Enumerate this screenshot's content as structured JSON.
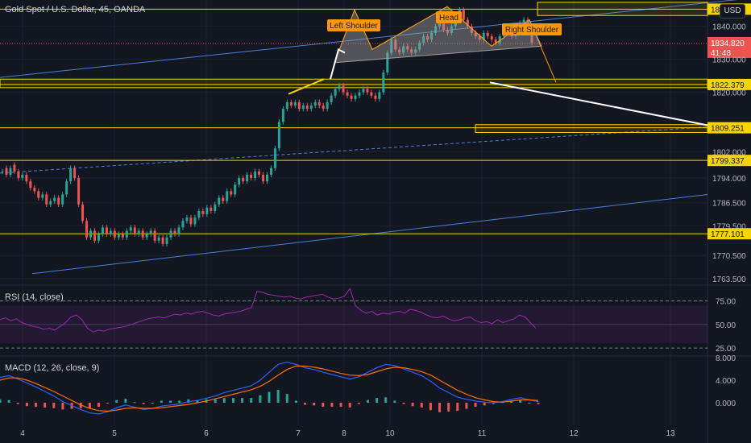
{
  "header": {
    "symbol": "Gold Spot / U.S. Dollar, 45, OANDA",
    "currency_button": "USD"
  },
  "colors": {
    "background": "#131722",
    "grid": "#1e222d",
    "up": "#26a69a",
    "down": "#ef5350",
    "level_line": "#f5d400",
    "channel": "#4a7fd6",
    "pattern_fill": "#9e9e9e",
    "annotation_bg": "#ff9800",
    "rsi": "#9c27b0",
    "macd": "#2962ff",
    "signal": "#ff6d00",
    "hist_up": "#26a69a",
    "hist_down": "#ef5350"
  },
  "annotations": {
    "left_shoulder": "Left Shoulder",
    "head": "Head",
    "right_shoulder": "Right Shoulder"
  },
  "current_price": {
    "price": "1834.820",
    "countdown": "41:48"
  },
  "level_tags": [
    {
      "label": "1845.225",
      "value": 1845.225
    },
    {
      "label": "1822.379",
      "value": 1822.379
    },
    {
      "label": "1809.251",
      "value": 1809.251
    },
    {
      "label": "1799.337",
      "value": 1799.337
    },
    {
      "label": "1777.101",
      "value": 1777.101
    }
  ],
  "chart_data": {
    "type": "candlestick",
    "title": "Gold Spot / U.S. Dollar, 45, OANDA",
    "price_axis": {
      "ticks": [
        "1840.000",
        "1830.000",
        "1820.000",
        "1802.000",
        "1794.000",
        "1786.500",
        "1779.500",
        "1770.500",
        "1763.500"
      ],
      "range": [
        1762,
        1848
      ]
    },
    "x_axis": {
      "ticks": [
        "4",
        "5",
        "6",
        "7",
        "8",
        "10",
        "11",
        "12",
        "13"
      ]
    },
    "horizontal_levels": [
      1845.225,
      1822.379,
      1809.251,
      1799.337,
      1777.101
    ],
    "price_path": [
      [
        1796,
        1796
      ],
      [
        1797,
        1795
      ],
      [
        1795,
        1797
      ],
      [
        1798,
        1796
      ],
      [
        1796,
        1794
      ],
      [
        1794,
        1795
      ],
      [
        1795,
        1793
      ],
      [
        1793,
        1791
      ],
      [
        1791,
        1790
      ],
      [
        1790,
        1788
      ],
      [
        1788,
        1789
      ],
      [
        1789,
        1786
      ],
      [
        1786,
        1787
      ],
      [
        1787,
        1788
      ],
      [
        1788,
        1786
      ],
      [
        1786,
        1789
      ],
      [
        1789,
        1793
      ],
      [
        1793,
        1797
      ],
      [
        1797,
        1794
      ],
      [
        1794,
        1786
      ],
      [
        1786,
        1781
      ],
      [
        1781,
        1776
      ],
      [
        1776,
        1778
      ],
      [
        1778,
        1775
      ],
      [
        1775,
        1777
      ],
      [
        1777,
        1779
      ],
      [
        1779,
        1777
      ],
      [
        1777,
        1778
      ],
      [
        1778,
        1776
      ],
      [
        1776,
        1777
      ],
      [
        1777,
        1776
      ],
      [
        1776,
        1778
      ],
      [
        1778,
        1779
      ],
      [
        1779,
        1777
      ],
      [
        1777,
        1778
      ],
      [
        1778,
        1776
      ],
      [
        1776,
        1777
      ],
      [
        1777,
        1778
      ],
      [
        1778,
        1775
      ],
      [
        1775,
        1776
      ],
      [
        1776,
        1774
      ],
      [
        1774,
        1776
      ],
      [
        1776,
        1778
      ],
      [
        1778,
        1777
      ],
      [
        1777,
        1779
      ],
      [
        1779,
        1781
      ],
      [
        1781,
        1782
      ],
      [
        1782,
        1780
      ],
      [
        1780,
        1782
      ],
      [
        1782,
        1784
      ],
      [
        1784,
        1783
      ],
      [
        1783,
        1785
      ],
      [
        1785,
        1784
      ],
      [
        1784,
        1786
      ],
      [
        1786,
        1788
      ],
      [
        1788,
        1787
      ],
      [
        1787,
        1790
      ],
      [
        1790,
        1789
      ],
      [
        1789,
        1792
      ],
      [
        1792,
        1794
      ],
      [
        1794,
        1793
      ],
      [
        1793,
        1795
      ],
      [
        1795,
        1794
      ],
      [
        1794,
        1796
      ],
      [
        1796,
        1795
      ],
      [
        1795,
        1793
      ],
      [
        1793,
        1795
      ],
      [
        1795,
        1797
      ],
      [
        1797,
        1803
      ],
      [
        1803,
        1811
      ],
      [
        1811,
        1815
      ],
      [
        1815,
        1817
      ],
      [
        1817,
        1816
      ],
      [
        1816,
        1817
      ],
      [
        1817,
        1815
      ],
      [
        1815,
        1816
      ],
      [
        1816,
        1815
      ],
      [
        1815,
        1816
      ],
      [
        1816,
        1817
      ],
      [
        1817,
        1816
      ],
      [
        1816,
        1815
      ],
      [
        1815,
        1817
      ],
      [
        1817,
        1819
      ],
      [
        1819,
        1821
      ],
      [
        1821,
        1822
      ],
      [
        1822,
        1820
      ],
      [
        1820,
        1819
      ],
      [
        1819,
        1818
      ],
      [
        1818,
        1819
      ],
      [
        1819,
        1820
      ],
      [
        1820,
        1821
      ],
      [
        1821,
        1820
      ],
      [
        1820,
        1819
      ],
      [
        1819,
        1818
      ],
      [
        1818,
        1820
      ],
      [
        1820,
        1826
      ],
      [
        1826,
        1832
      ],
      [
        1832,
        1836
      ],
      [
        1836,
        1833
      ],
      [
        1833,
        1832
      ],
      [
        1832,
        1834
      ],
      [
        1834,
        1833
      ],
      [
        1833,
        1832
      ],
      [
        1832,
        1833
      ],
      [
        1833,
        1835
      ],
      [
        1835,
        1837
      ],
      [
        1837,
        1836
      ],
      [
        1836,
        1838
      ],
      [
        1838,
        1840
      ],
      [
        1840,
        1841
      ],
      [
        1841,
        1839
      ],
      [
        1839,
        1838
      ],
      [
        1838,
        1840
      ],
      [
        1840,
        1843
      ],
      [
        1843,
        1845
      ],
      [
        1845,
        1842
      ],
      [
        1842,
        1840
      ],
      [
        1840,
        1838
      ],
      [
        1838,
        1837
      ],
      [
        1837,
        1836
      ],
      [
        1836,
        1838
      ],
      [
        1838,
        1837
      ],
      [
        1837,
        1836
      ],
      [
        1836,
        1835
      ],
      [
        1835,
        1837
      ],
      [
        1837,
        1839
      ],
      [
        1839,
        1838
      ],
      [
        1838,
        1837
      ],
      [
        1837,
        1839
      ],
      [
        1839,
        1841
      ],
      [
        1841,
        1842
      ],
      [
        1842,
        1838
      ],
      [
        1838,
        1835
      ]
    ],
    "rsi": {
      "title": "RSI (14, close)",
      "ticks": [
        "75.00",
        "50.00",
        "25.00"
      ],
      "band": [
        30,
        70
      ],
      "range": [
        20,
        90
      ],
      "values": [
        55,
        57,
        54,
        56,
        52,
        50,
        48,
        47,
        45,
        46,
        44,
        48,
        52,
        58,
        60,
        55,
        46,
        42,
        44,
        43,
        45,
        46,
        47,
        48,
        50,
        52,
        54,
        56,
        57,
        58,
        57,
        59,
        61,
        60,
        62,
        61,
        63,
        64,
        62,
        60,
        59,
        61,
        62,
        63,
        64,
        66,
        68,
        85,
        84,
        82,
        81,
        80,
        79,
        80,
        78,
        77,
        79,
        80,
        81,
        82,
        79,
        77,
        78,
        80,
        88,
        70,
        65,
        62,
        64,
        60,
        62,
        61,
        63,
        64,
        62,
        66,
        65,
        63,
        60,
        58,
        57,
        59,
        56,
        54,
        55,
        57,
        58,
        54,
        52,
        53,
        51,
        55,
        52,
        54,
        56,
        60,
        58,
        52,
        46
      ]
    },
    "macd": {
      "title": "MACD (12, 26, close, 9)",
      "ticks": [
        "8.000",
        "4.000",
        "0.000"
      ],
      "range": [
        -4,
        8
      ],
      "macd_line": [
        4.5,
        4.8,
        4.2,
        3.5,
        2.8,
        2.0,
        1.2,
        0.2,
        -0.5,
        -1.2,
        -1.8,
        -2.0,
        -1.6,
        -0.9,
        -0.4,
        -0.8,
        -1.2,
        -1.0,
        -0.6,
        -0.4,
        -0.2,
        0.2,
        0.4,
        0.8,
        1.2,
        1.8,
        2.2,
        2.6,
        3.0,
        4.0,
        5.4,
        6.8,
        7.2,
        6.8,
        6.2,
        5.9,
        5.4,
        5.0,
        4.6,
        4.2,
        4.6,
        5.4,
        6.2,
        6.8,
        6.6,
        6.0,
        5.4,
        4.8,
        3.8,
        2.6,
        1.8,
        1.0,
        0.6,
        0.3,
        0.1,
        0.0,
        0.2,
        0.6,
        0.9,
        0.5,
        0.2
      ],
      "signal_line": [
        4.0,
        4.4,
        4.4,
        4.0,
        3.4,
        2.7,
        2.0,
        1.2,
        0.4,
        -0.4,
        -1.0,
        -1.4,
        -1.5,
        -1.3,
        -1.0,
        -0.9,
        -1.0,
        -1.0,
        -0.9,
        -0.7,
        -0.5,
        -0.3,
        0.0,
        0.3,
        0.7,
        1.1,
        1.5,
        1.9,
        2.3,
        2.9,
        3.8,
        4.9,
        5.9,
        6.5,
        6.5,
        6.3,
        6.0,
        5.6,
        5.2,
        4.9,
        4.8,
        5.0,
        5.5,
        6.0,
        6.3,
        6.2,
        5.9,
        5.5,
        4.9,
        4.0,
        3.1,
        2.2,
        1.5,
        0.9,
        0.5,
        0.2,
        0.1,
        0.3,
        0.5,
        0.5,
        0.4
      ]
    }
  }
}
